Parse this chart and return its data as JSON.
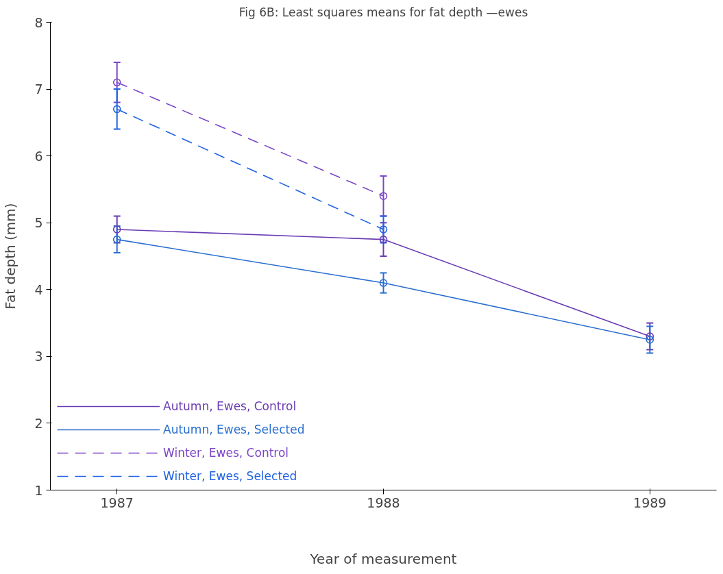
{
  "chart_data": {
    "type": "line",
    "title": "Fig 6B: Least squares means for fat depth —ewes",
    "xlabel": "Year of measurement",
    "ylabel": "Fat depth (mm)",
    "x": [
      1987,
      1988,
      1989
    ],
    "xlim": [
      1986.75,
      1989.25
    ],
    "xticks": [
      1987,
      1988,
      1989
    ],
    "ylim": [
      1,
      8
    ],
    "yticks": [
      1,
      2,
      3,
      4,
      5,
      6,
      7,
      8
    ],
    "grid": false,
    "legend": "bottom left",
    "marker": "circle",
    "series": [
      {
        "name": "Autumn, Ewes, Control",
        "color": "#6a3cb4",
        "line_style": "solid",
        "values": [
          4.9,
          4.75,
          3.3
        ],
        "errors": [
          0.2,
          0.25,
          0.2
        ]
      },
      {
        "name": "Autumn, Ewes, Selected",
        "color": "#2a6fd0",
        "line_style": "solid",
        "values": [
          4.75,
          4.1,
          3.25
        ],
        "errors": [
          0.2,
          0.15,
          0.2
        ]
      },
      {
        "name": "Winter, Ewes, Control",
        "color": "#7a46c8",
        "line_style": "dashed",
        "values": [
          7.1,
          5.4,
          null
        ],
        "errors": [
          0.3,
          0.3,
          null
        ]
      },
      {
        "name": "Winter, Ewes, Selected",
        "color": "#1f62e0",
        "line_style": "dashed",
        "values": [
          6.7,
          4.9,
          null
        ],
        "errors": [
          0.3,
          0.2,
          null
        ]
      }
    ]
  }
}
